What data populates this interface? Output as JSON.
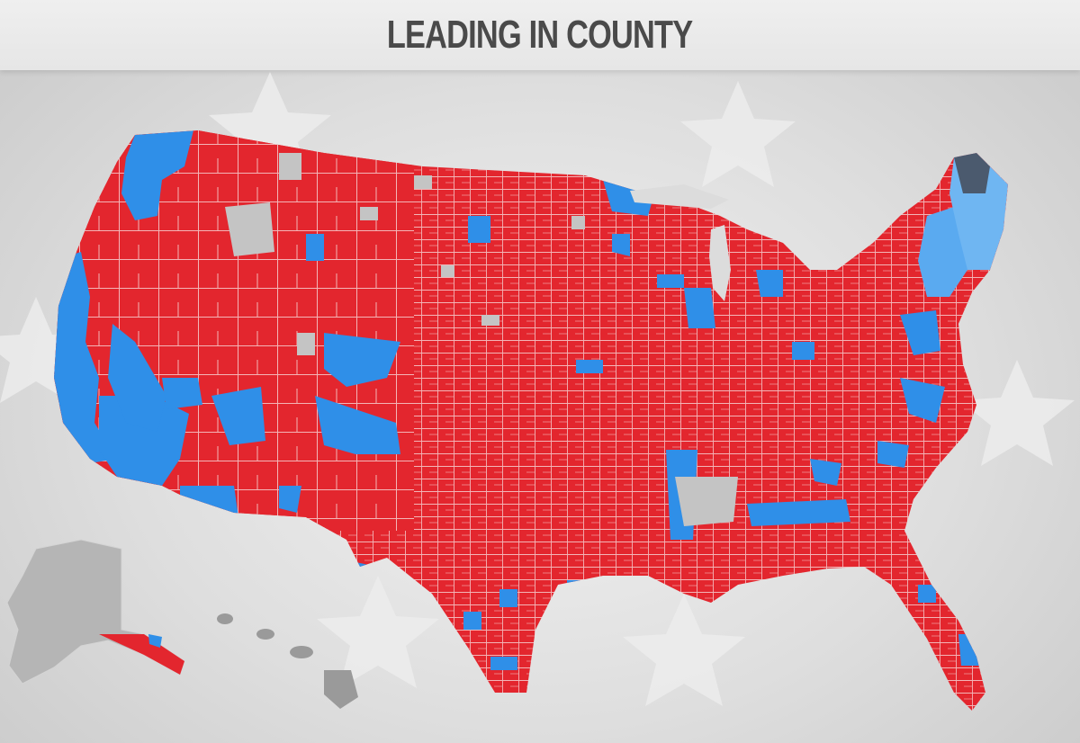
{
  "title": "LEADING IN COUNTY",
  "colors": {
    "republican": "#e3262e",
    "democrat": "#2f8fe8",
    "no_result": "#c4c4c4",
    "county_border": "#f3b5b7",
    "background": "#dcdcdc",
    "title_text": "#4a4a4a"
  },
  "map": {
    "regions": [
      "contiguous-us",
      "alaska",
      "hawaii"
    ],
    "legend": "none"
  }
}
